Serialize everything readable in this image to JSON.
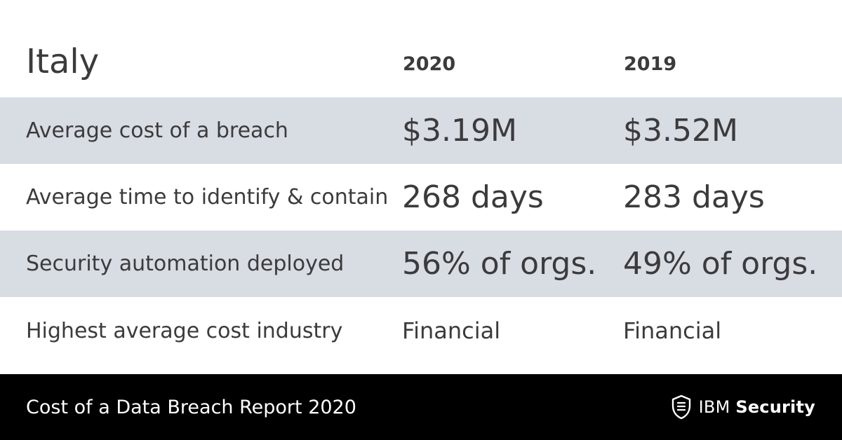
{
  "header": {
    "country": "Italy",
    "years": [
      "2020",
      "2019"
    ]
  },
  "rows": [
    {
      "label": "Average cost of a breach",
      "values": [
        "$3.19M",
        "$3.52M"
      ]
    },
    {
      "label": "Average time to identify & contain",
      "values": [
        "268 days",
        "283 days"
      ]
    },
    {
      "label": "Security automation deployed",
      "values": [
        "56% of orgs.",
        "49% of orgs."
      ]
    },
    {
      "label": "Highest average cost industry",
      "values": [
        "Financial",
        "Financial"
      ]
    }
  ],
  "footer": {
    "title": "Cost of a Data Breach Report 2020",
    "brand_ibm": "IBM",
    "brand_security": "Security",
    "brand_icon": "shield-icon"
  },
  "colors": {
    "text": "#3b3b3d",
    "row_shade": "#d8dce3",
    "footer_bg": "#000000",
    "footer_text": "#ffffff"
  }
}
